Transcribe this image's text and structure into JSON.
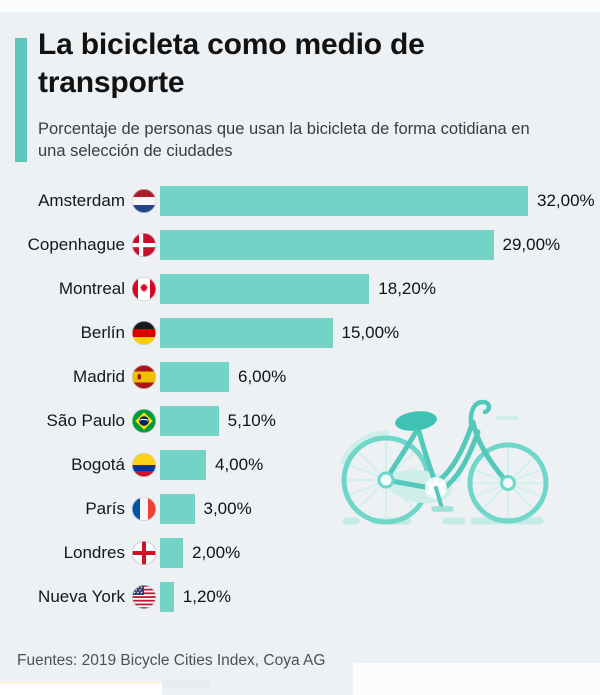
{
  "header": {
    "title": "La bicicleta como medio de transporte",
    "subtitle": "Porcentaje de personas que usan la bicicleta de forma cotidiana en una selección de ciudades"
  },
  "footer": {
    "sources": "Fuentes: 2019 Bicycle Cities Index, Coya AG"
  },
  "colors": {
    "background": "#eef1f4",
    "accent": "#5fc6bb",
    "bar": "#74d3c7",
    "bike_outline": "#54c8bb"
  },
  "chart_data": {
    "type": "bar",
    "orientation": "horizontal",
    "unit": "%",
    "title": "La bicicleta como medio de transporte",
    "subtitle": "Porcentaje de personas que usan la bicicleta de forma cotidiana en una selección de ciudades",
    "categories": [
      "Amsterdam",
      "Copenhague",
      "Montreal",
      "Berlín",
      "Madrid",
      "São Paulo",
      "Bogotá",
      "París",
      "Londres",
      "Nueva York"
    ],
    "values": [
      32.0,
      29.0,
      18.2,
      15.0,
      6.0,
      5.1,
      4.0,
      3.0,
      2.0,
      1.2
    ],
    "value_labels": [
      "32,00%",
      "29,00%",
      "18,20%",
      "15,00%",
      "6,00%",
      "5,10%",
      "4,00%",
      "3,00%",
      "2,00%",
      "1,20%"
    ],
    "xlim": [
      0,
      34
    ],
    "grid": false,
    "legend": false,
    "rows": [
      {
        "city": "Amsterdam",
        "flag": "netherlands-flag-icon",
        "value": 32.0,
        "value_label": "32,00%"
      },
      {
        "city": "Copenhague",
        "flag": "denmark-flag-icon",
        "value": 29.0,
        "value_label": "29,00%"
      },
      {
        "city": "Montreal",
        "flag": "canada-flag-icon",
        "value": 18.2,
        "value_label": "18,20%"
      },
      {
        "city": "Berlín",
        "flag": "germany-flag-icon",
        "value": 15.0,
        "value_label": "15,00%"
      },
      {
        "city": "Madrid",
        "flag": "spain-flag-icon",
        "value": 6.0,
        "value_label": "6,00%"
      },
      {
        "city": "São Paulo",
        "flag": "brazil-flag-icon",
        "value": 5.1,
        "value_label": "5,10%"
      },
      {
        "city": "Bogotá",
        "flag": "colombia-flag-icon",
        "value": 4.0,
        "value_label": "4,00%"
      },
      {
        "city": "París",
        "flag": "france-flag-icon",
        "value": 3.0,
        "value_label": "3,00%"
      },
      {
        "city": "Londres",
        "flag": "england-flag-icon",
        "value": 2.0,
        "value_label": "2,00%"
      },
      {
        "city": "Nueva York",
        "flag": "usa-flag-icon",
        "value": 1.2,
        "value_label": "1,20%"
      }
    ]
  }
}
